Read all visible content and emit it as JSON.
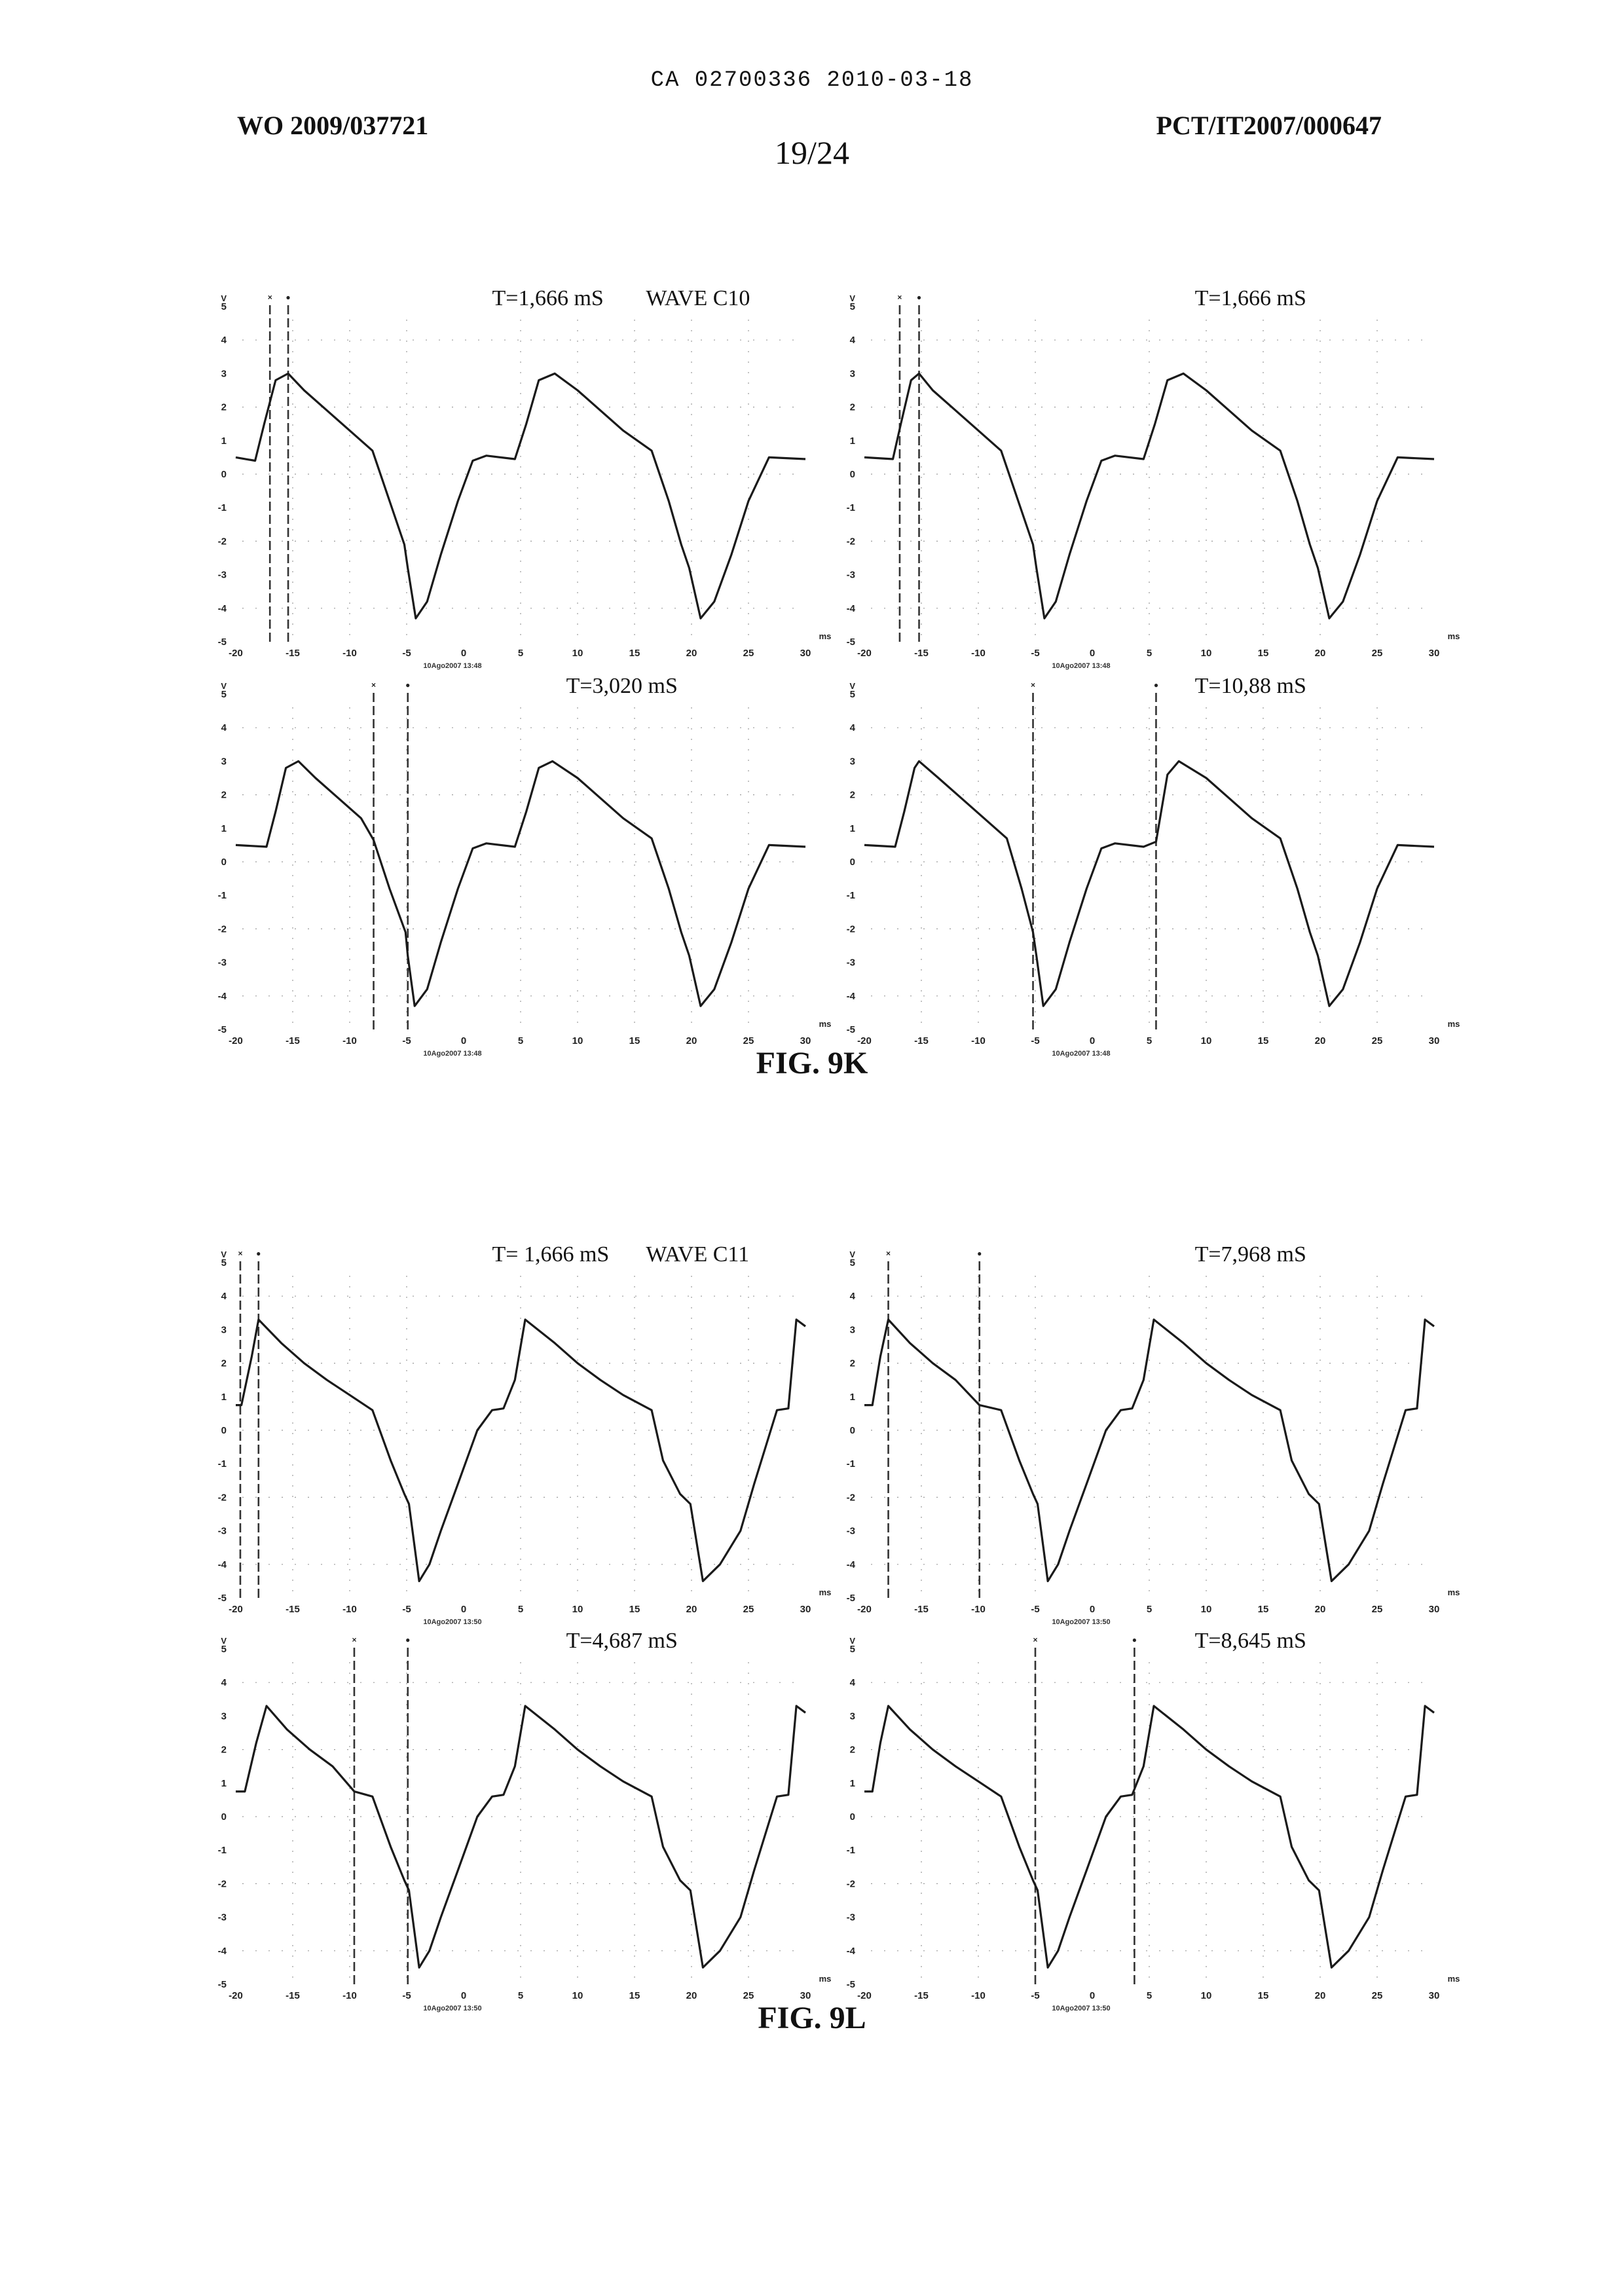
{
  "header": {
    "top_code": "CA 02700336 2010-03-18",
    "pub_left": "WO 2009/037721",
    "pub_right": "PCT/IT2007/000647",
    "sheet": "19/24"
  },
  "figures": [
    {
      "caption": "FIG. 9K"
    },
    {
      "caption": "FIG. 9L"
    }
  ],
  "colors": {
    "trace": "#1a1a1a",
    "cursor": "#333333",
    "grid": "#9a9a9a"
  },
  "chart_data": [
    {
      "type": "line",
      "id": "k1",
      "figure": "FIG. 9K",
      "title": "T=1,666  mS",
      "label": "WAVE C10",
      "x_unit": "ms",
      "y_unit": "V",
      "xlim": [
        -20,
        30
      ],
      "ylim": [
        -5,
        5
      ],
      "xticks": [
        "-20",
        "-15",
        "-10",
        "-5",
        "0",
        "5",
        "10",
        "15",
        "20",
        "25",
        "30"
      ],
      "yticks": [
        "5",
        "4",
        "3",
        "2",
        "1",
        "0",
        "-1",
        "-2",
        "-3",
        "-4",
        "-5"
      ],
      "cursors": [
        {
          "marker": "x",
          "x": -17.0
        },
        {
          "marker": "o",
          "x": -15.4
        }
      ],
      "stamp": "10Ago2007 13:48",
      "x": [
        -20,
        -18.3,
        -17.5,
        -16.5,
        -15.4,
        -14,
        -12,
        -10,
        -8,
        -6.5,
        -5.2,
        -4.9,
        -4.2,
        -3.2,
        -2,
        -0.5,
        0.8,
        2,
        4.5,
        5.5,
        6.6,
        8,
        10,
        12,
        14,
        16.5,
        18,
        19.1,
        19.8,
        20.8,
        22,
        23.5,
        25,
        26.8,
        30
      ],
      "y": [
        0.5,
        0.4,
        1.5,
        2.8,
        3.0,
        2.5,
        1.9,
        1.3,
        0.7,
        -0.8,
        -2.1,
        -2.8,
        -4.3,
        -3.8,
        -2.4,
        -0.8,
        0.4,
        0.55,
        0.45,
        1.5,
        2.8,
        3.0,
        2.5,
        1.9,
        1.3,
        0.7,
        -0.8,
        -2.1,
        -2.8,
        -4.3,
        -3.8,
        -2.4,
        -0.8,
        0.5,
        0.45
      ]
    },
    {
      "type": "line",
      "id": "k2",
      "figure": "FIG. 9K",
      "title": "T=1,666  mS",
      "label": "",
      "x_unit": "ms",
      "y_unit": "V",
      "xlim": [
        -20,
        30
      ],
      "ylim": [
        -5,
        5
      ],
      "xticks": [
        "-20",
        "-15",
        "-10",
        "-5",
        "0",
        "5",
        "10",
        "15",
        "20",
        "25",
        "30"
      ],
      "yticks": [
        "5",
        "4",
        "3",
        "2",
        "1",
        "0",
        "-1",
        "-2",
        "-3",
        "-4",
        "-5"
      ],
      "cursors": [
        {
          "marker": "x",
          "x": -16.9
        },
        {
          "marker": "o",
          "x": -15.2
        }
      ],
      "stamp": "10Ago2007 13:48",
      "x": [
        -20,
        -17.5,
        -16.8,
        -15.9,
        -15.2,
        -14,
        -12,
        -10,
        -8,
        -6.5,
        -5.2,
        -4.9,
        -4.2,
        -3.2,
        -2,
        -0.5,
        0.8,
        2,
        4.5,
        5.5,
        6.6,
        8,
        10,
        12,
        14,
        16.5,
        18,
        19.1,
        19.8,
        20.8,
        22,
        23.5,
        25,
        26.8,
        30
      ],
      "y": [
        0.5,
        0.45,
        1.5,
        2.8,
        3.0,
        2.5,
        1.9,
        1.3,
        0.7,
        -0.8,
        -2.1,
        -2.8,
        -4.3,
        -3.8,
        -2.4,
        -0.8,
        0.4,
        0.55,
        0.45,
        1.5,
        2.8,
        3.0,
        2.5,
        1.9,
        1.3,
        0.7,
        -0.8,
        -2.1,
        -2.8,
        -4.3,
        -3.8,
        -2.4,
        -0.8,
        0.5,
        0.45
      ]
    },
    {
      "type": "line",
      "id": "k3",
      "figure": "FIG. 9K",
      "title": "T=3,020  mS",
      "label": "",
      "x_unit": "ms",
      "y_unit": "V",
      "xlim": [
        -20,
        30
      ],
      "ylim": [
        -5,
        5
      ],
      "xticks": [
        "-20",
        "-15",
        "-10",
        "-5",
        "0",
        "5",
        "10",
        "15",
        "20",
        "25",
        "30"
      ],
      "yticks": [
        "5",
        "4",
        "3",
        "2",
        "1",
        "0",
        "-1",
        "-2",
        "-3",
        "-4",
        "-5"
      ],
      "cursors": [
        {
          "marker": "x",
          "x": -7.9
        },
        {
          "marker": "o",
          "x": -4.9
        }
      ],
      "stamp": "10Ago2007 13:48",
      "x": [
        -20,
        -17.3,
        -16.5,
        -15.6,
        -14.5,
        -13,
        -11,
        -9,
        -7.9,
        -6.5,
        -5.1,
        -4.9,
        -4.3,
        -3.2,
        -2,
        -0.5,
        0.8,
        2,
        4.5,
        5.5,
        6.6,
        7.8,
        10,
        12,
        14,
        16.5,
        18,
        19.1,
        19.8,
        20.8,
        22,
        23.5,
        25,
        26.8,
        30
      ],
      "y": [
        0.5,
        0.45,
        1.5,
        2.8,
        3.0,
        2.5,
        1.9,
        1.3,
        0.65,
        -0.8,
        -2.1,
        -2.8,
        -4.3,
        -3.8,
        -2.4,
        -0.8,
        0.4,
        0.55,
        0.45,
        1.5,
        2.8,
        3.0,
        2.5,
        1.9,
        1.3,
        0.7,
        -0.8,
        -2.1,
        -2.8,
        -4.3,
        -3.8,
        -2.4,
        -0.8,
        0.5,
        0.45
      ]
    },
    {
      "type": "line",
      "id": "k4",
      "figure": "FIG. 9K",
      "title": "T=10,88  mS",
      "label": "",
      "x_unit": "ms",
      "y_unit": "V",
      "xlim": [
        -20,
        30
      ],
      "ylim": [
        -5,
        5
      ],
      "xticks": [
        "-20",
        "-15",
        "-10",
        "-5",
        "0",
        "5",
        "10",
        "15",
        "20",
        "25",
        "30"
      ],
      "yticks": [
        "5",
        "4",
        "3",
        "2",
        "1",
        "0",
        "-1",
        "-2",
        "-3",
        "-4",
        "-5"
      ],
      "cursors": [
        {
          "marker": "x",
          "x": -5.2
        },
        {
          "marker": "o",
          "x": 5.6
        }
      ],
      "stamp": "10Ago2007 13:48",
      "x": [
        -20,
        -17.3,
        -16.5,
        -15.6,
        -15.2,
        -13.5,
        -11.5,
        -9.5,
        -7.5,
        -6.2,
        -5.2,
        -4.9,
        -4.3,
        -3.2,
        -2,
        -0.5,
        0.8,
        2,
        4.5,
        5.6,
        6.6,
        7.6,
        10,
        12,
        14,
        16.5,
        18,
        19.1,
        19.8,
        20.8,
        22,
        23.5,
        25,
        26.8,
        30
      ],
      "y": [
        0.5,
        0.45,
        1.5,
        2.8,
        3.0,
        2.5,
        1.9,
        1.3,
        0.7,
        -0.8,
        -2.1,
        -2.8,
        -4.3,
        -3.8,
        -2.4,
        -0.8,
        0.4,
        0.55,
        0.45,
        0.6,
        2.6,
        3.0,
        2.5,
        1.9,
        1.3,
        0.7,
        -0.8,
        -2.1,
        -2.8,
        -4.3,
        -3.8,
        -2.4,
        -0.8,
        0.5,
        0.45
      ]
    },
    {
      "type": "line",
      "id": "l1",
      "figure": "FIG. 9L",
      "title": "T= 1,666 mS",
      "label": "WAVE C11",
      "x_unit": "ms",
      "y_unit": "V",
      "xlim": [
        -20,
        30
      ],
      "ylim": [
        -5,
        5
      ],
      "xticks": [
        "-20",
        "-15",
        "-10",
        "-5",
        "0",
        "5",
        "10",
        "15",
        "20",
        "25",
        "30"
      ],
      "yticks": [
        "5",
        "4",
        "3",
        "2",
        "1",
        "0",
        "-1",
        "-2",
        "-3",
        "-4",
        "-5"
      ],
      "cursors": [
        {
          "marker": "x",
          "x": -19.6
        },
        {
          "marker": "o",
          "x": -18.0
        }
      ],
      "stamp": "10Ago2007 13:50",
      "x": [
        -20,
        -19.5,
        -18.6,
        -18.0,
        -16,
        -14,
        -12,
        -10,
        -8,
        -6.4,
        -5.2,
        -4.8,
        -3.9,
        -3,
        -2,
        -0.5,
        1.2,
        2.5,
        3.5,
        4.5,
        5.4,
        8,
        10,
        12,
        14,
        16.5,
        17.5,
        19,
        19.9,
        21,
        22.5,
        24.3,
        25.5,
        27.5,
        28.5,
        29.2,
        30
      ],
      "y": [
        0.75,
        0.75,
        2.2,
        3.3,
        2.6,
        2.0,
        1.5,
        1.05,
        0.6,
        -0.9,
        -1.9,
        -2.2,
        -4.5,
        -4.0,
        -3.0,
        -1.6,
        0.0,
        0.6,
        0.65,
        1.5,
        3.3,
        2.6,
        2.0,
        1.5,
        1.05,
        0.6,
        -0.9,
        -1.9,
        -2.2,
        -4.5,
        -4.0,
        -3.0,
        -1.6,
        0.6,
        0.65,
        3.3,
        3.1
      ]
    },
    {
      "type": "line",
      "id": "l2",
      "figure": "FIG. 9L",
      "title": "T=7,968  mS",
      "label": "",
      "x_unit": "ms",
      "y_unit": "V",
      "xlim": [
        -20,
        30
      ],
      "ylim": [
        -5,
        5
      ],
      "xticks": [
        "-20",
        "-15",
        "-10",
        "-5",
        "0",
        "5",
        "10",
        "15",
        "20",
        "25",
        "30"
      ],
      "yticks": [
        "5",
        "4",
        "3",
        "2",
        "1",
        "0",
        "-1",
        "-2",
        "-3",
        "-4",
        "-5"
      ],
      "cursors": [
        {
          "marker": "x",
          "x": -17.9
        },
        {
          "marker": "o",
          "x": -9.9
        }
      ],
      "stamp": "10Ago2007 13:50",
      "x": [
        -20,
        -19.3,
        -18.6,
        -17.9,
        -16,
        -14,
        -12,
        -9.9,
        -8,
        -6.4,
        -5.2,
        -4.8,
        -3.9,
        -3,
        -2,
        -0.5,
        1.2,
        2.5,
        3.5,
        4.5,
        5.4,
        8,
        10,
        12,
        14,
        16.5,
        17.5,
        19,
        19.9,
        21,
        22.5,
        24.3,
        25.5,
        27.5,
        28.5,
        29.2,
        30
      ],
      "y": [
        0.75,
        0.75,
        2.2,
        3.3,
        2.6,
        2.0,
        1.5,
        0.75,
        0.6,
        -0.9,
        -1.9,
        -2.2,
        -4.5,
        -4.0,
        -3.0,
        -1.6,
        0.0,
        0.6,
        0.65,
        1.5,
        3.3,
        2.6,
        2.0,
        1.5,
        1.05,
        0.6,
        -0.9,
        -1.9,
        -2.2,
        -4.5,
        -4.0,
        -3.0,
        -1.6,
        0.6,
        0.65,
        3.3,
        3.1
      ]
    },
    {
      "type": "line",
      "id": "l3",
      "figure": "FIG. 9L",
      "title": "T=4,687  mS",
      "label": "",
      "x_unit": "ms",
      "y_unit": "V",
      "xlim": [
        -20,
        30
      ],
      "ylim": [
        -5,
        5
      ],
      "xticks": [
        "-20",
        "-15",
        "-10",
        "-5",
        "0",
        "5",
        "10",
        "15",
        "20",
        "25",
        "30"
      ],
      "yticks": [
        "5",
        "4",
        "3",
        "2",
        "1",
        "0",
        "-1",
        "-2",
        "-3",
        "-4",
        "-5"
      ],
      "cursors": [
        {
          "marker": "x",
          "x": -9.6
        },
        {
          "marker": "o",
          "x": -4.9
        }
      ],
      "stamp": "10Ago2007 13:50",
      "x": [
        -20,
        -19.2,
        -18.2,
        -17.3,
        -15.5,
        -13.5,
        -11.5,
        -9.6,
        -8,
        -6.4,
        -5.2,
        -4.8,
        -3.9,
        -3,
        -2,
        -0.5,
        1.2,
        2.5,
        3.5,
        4.5,
        5.4,
        8,
        10,
        12,
        14,
        16.5,
        17.5,
        19,
        19.9,
        21,
        22.5,
        24.3,
        25.5,
        27.5,
        28.5,
        29.2,
        30
      ],
      "y": [
        0.75,
        0.75,
        2.2,
        3.3,
        2.6,
        2.0,
        1.5,
        0.75,
        0.6,
        -0.9,
        -1.9,
        -2.2,
        -4.5,
        -4.0,
        -3.0,
        -1.6,
        0.0,
        0.6,
        0.65,
        1.5,
        3.3,
        2.6,
        2.0,
        1.5,
        1.05,
        0.6,
        -0.9,
        -1.9,
        -2.2,
        -4.5,
        -4.0,
        -3.0,
        -1.6,
        0.6,
        0.65,
        3.3,
        3.1
      ]
    },
    {
      "type": "line",
      "id": "l4",
      "figure": "FIG. 9L",
      "title": "T=8,645  mS",
      "label": "",
      "x_unit": "ms",
      "y_unit": "V",
      "xlim": [
        -20,
        30
      ],
      "ylim": [
        -5,
        5
      ],
      "xticks": [
        "-20",
        "-15",
        "-10",
        "-5",
        "0",
        "5",
        "10",
        "15",
        "20",
        "25",
        "30"
      ],
      "yticks": [
        "5",
        "4",
        "3",
        "2",
        "1",
        "0",
        "-1",
        "-2",
        "-3",
        "-4",
        "-5"
      ],
      "cursors": [
        {
          "marker": "x",
          "x": -5.0
        },
        {
          "marker": "o",
          "x": 3.7
        }
      ],
      "stamp": "10Ago2007 13:50",
      "x": [
        -20,
        -19.3,
        -18.6,
        -17.9,
        -16,
        -14,
        -12,
        -10,
        -8,
        -6.4,
        -5.2,
        -4.8,
        -3.9,
        -3,
        -2,
        -0.5,
        1.2,
        2.5,
        3.5,
        4.5,
        5.4,
        8,
        10,
        12,
        14,
        16.5,
        17.5,
        19,
        19.9,
        21,
        22.5,
        24.3,
        25.5,
        27.5,
        28.5,
        29.2,
        30
      ],
      "y": [
        0.75,
        0.75,
        2.2,
        3.3,
        2.6,
        2.0,
        1.5,
        1.05,
        0.6,
        -0.9,
        -1.9,
        -2.2,
        -4.5,
        -4.0,
        -3.0,
        -1.6,
        0.0,
        0.6,
        0.65,
        1.5,
        3.3,
        2.6,
        2.0,
        1.5,
        1.05,
        0.6,
        -0.9,
        -1.9,
        -2.2,
        -4.5,
        -4.0,
        -3.0,
        -1.6,
        0.6,
        0.65,
        3.3,
        3.1
      ]
    }
  ]
}
